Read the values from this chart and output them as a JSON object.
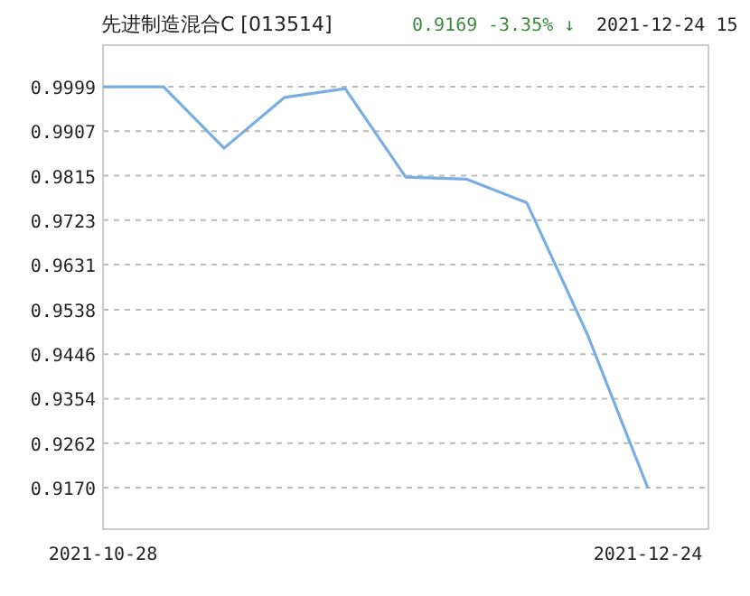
{
  "chart_data": {
    "type": "line",
    "title": "先进制造混合C [013514]",
    "annotations": [
      "0.9169",
      "-3.35% ↓",
      "2021-12-24 15"
    ],
    "categories": [
      "2021-10-28",
      null,
      null,
      null,
      null,
      null,
      null,
      null,
      null,
      "2021-12-24"
    ],
    "series": [
      {
        "color": "#7aaee0",
        "values": [
          0.9999,
          0.9999,
          0.9872,
          0.9977,
          0.9995,
          0.9812,
          0.9808,
          0.9759,
          0.9487,
          0.9169
        ]
      }
    ],
    "ylim": [
      0.9084,
      1.0085
    ],
    "yticks": [
      {
        "value": 0.917,
        "label": "0.9170"
      },
      0.9262,
      0.9354,
      0.9446,
      0.9538,
      0.9631,
      0.9723,
      0.9815,
      0.9907,
      0.9999
    ],
    "grid": "y"
  }
}
